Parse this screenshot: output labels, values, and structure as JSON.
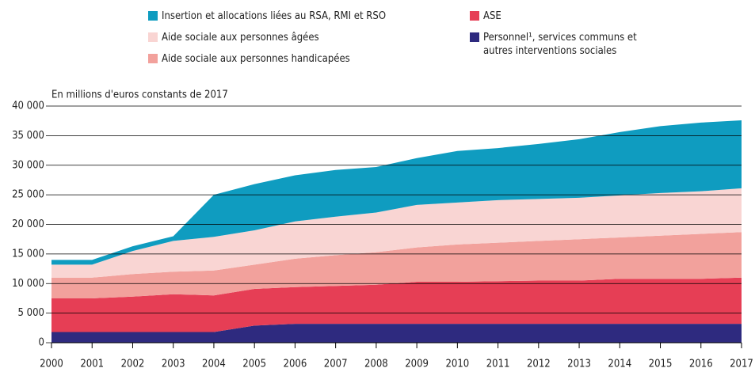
{
  "chart_data": {
    "type": "stacked_area",
    "ylabel": "En millions d'euros constants de 2017",
    "x": [
      2000,
      2001,
      2002,
      2003,
      2004,
      2005,
      2006,
      2007,
      2008,
      2009,
      2010,
      2011,
      2012,
      2013,
      2014,
      2015,
      2016,
      2017
    ],
    "xlim": [
      2000,
      2017
    ],
    "xticks": [
      2000,
      2001,
      2002,
      2003,
      2004,
      2005,
      2006,
      2007,
      2008,
      2009,
      2010,
      2011,
      2012,
      2013,
      2014,
      2015,
      2016,
      2017
    ],
    "ylim": [
      0,
      40000
    ],
    "yticks": [
      0,
      {
        "value": 5000,
        "label": "5 000"
      },
      {
        "value": 10000,
        "label": "10 000"
      },
      {
        "value": 15000,
        "label": "15 000"
      },
      {
        "value": 20000,
        "label": "20 000"
      },
      {
        "value": 25000,
        "label": "25 000"
      },
      {
        "value": 30000,
        "label": "30 000"
      },
      {
        "value": 35000,
        "label": "35 000"
      },
      {
        "value": 40000,
        "label": "40 000"
      }
    ],
    "grid": true,
    "series": [
      {
        "name": "Insertion et allocations liées au RSA, RMI et RSO",
        "color": "#0f9cc0",
        "values": [
          800,
          800,
          800,
          800,
          7100,
          7800,
          7800,
          7900,
          7700,
          7900,
          8700,
          8800,
          9300,
          9900,
          10700,
          11300,
          11600,
          11500
        ]
      },
      {
        "name": "Aide sociale aux personnes âgées",
        "color": "#f9d5d3",
        "values": [
          2200,
          2200,
          3900,
          5200,
          5700,
          5800,
          6300,
          6500,
          6700,
          7200,
          7100,
          7200,
          7100,
          7000,
          7100,
          7200,
          7200,
          7400
        ]
      },
      {
        "name": "Aide sociale aux personnes handicapées",
        "color": "#f2a19c",
        "values": [
          3500,
          3500,
          3800,
          3800,
          4200,
          4100,
          4800,
          5200,
          5500,
          5800,
          6300,
          6500,
          6700,
          7000,
          7000,
          7300,
          7600,
          7700
        ]
      },
      {
        "name": "ASE",
        "color": "#e63e55",
        "values": [
          5700,
          5700,
          6000,
          6400,
          6200,
          6200,
          6200,
          6400,
          6600,
          7100,
          7100,
          7200,
          7300,
          7300,
          7600,
          7600,
          7600,
          7800
        ]
      },
      {
        "name": "Personnel¹, services communs et autres interventions sociales",
        "color": "#2e2a7f",
        "values": [
          1800,
          1800,
          1800,
          1800,
          1800,
          2900,
          3200,
          3200,
          3200,
          3200,
          3200,
          3200,
          3200,
          3200,
          3200,
          3200,
          3200,
          3200
        ]
      }
    ]
  }
}
